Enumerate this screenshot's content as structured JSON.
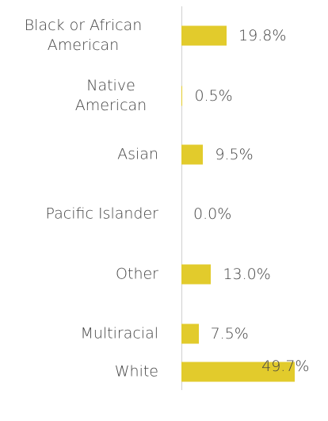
{
  "chart_data": {
    "type": "bar",
    "orientation": "horizontal",
    "categories": [
      "Black or African American",
      "Native American",
      "Asian",
      "Pacific Islander",
      "Other",
      "Multiracial",
      "White"
    ],
    "values": [
      19.8,
      0.5,
      9.5,
      0.0,
      13.0,
      7.5,
      49.7
    ],
    "value_labels": [
      "19.8%",
      "0.5%",
      "9.5%",
      "0.0%",
      "13.0%",
      "7.5%",
      "49.7%"
    ],
    "color": "#e2cb2c"
  }
}
